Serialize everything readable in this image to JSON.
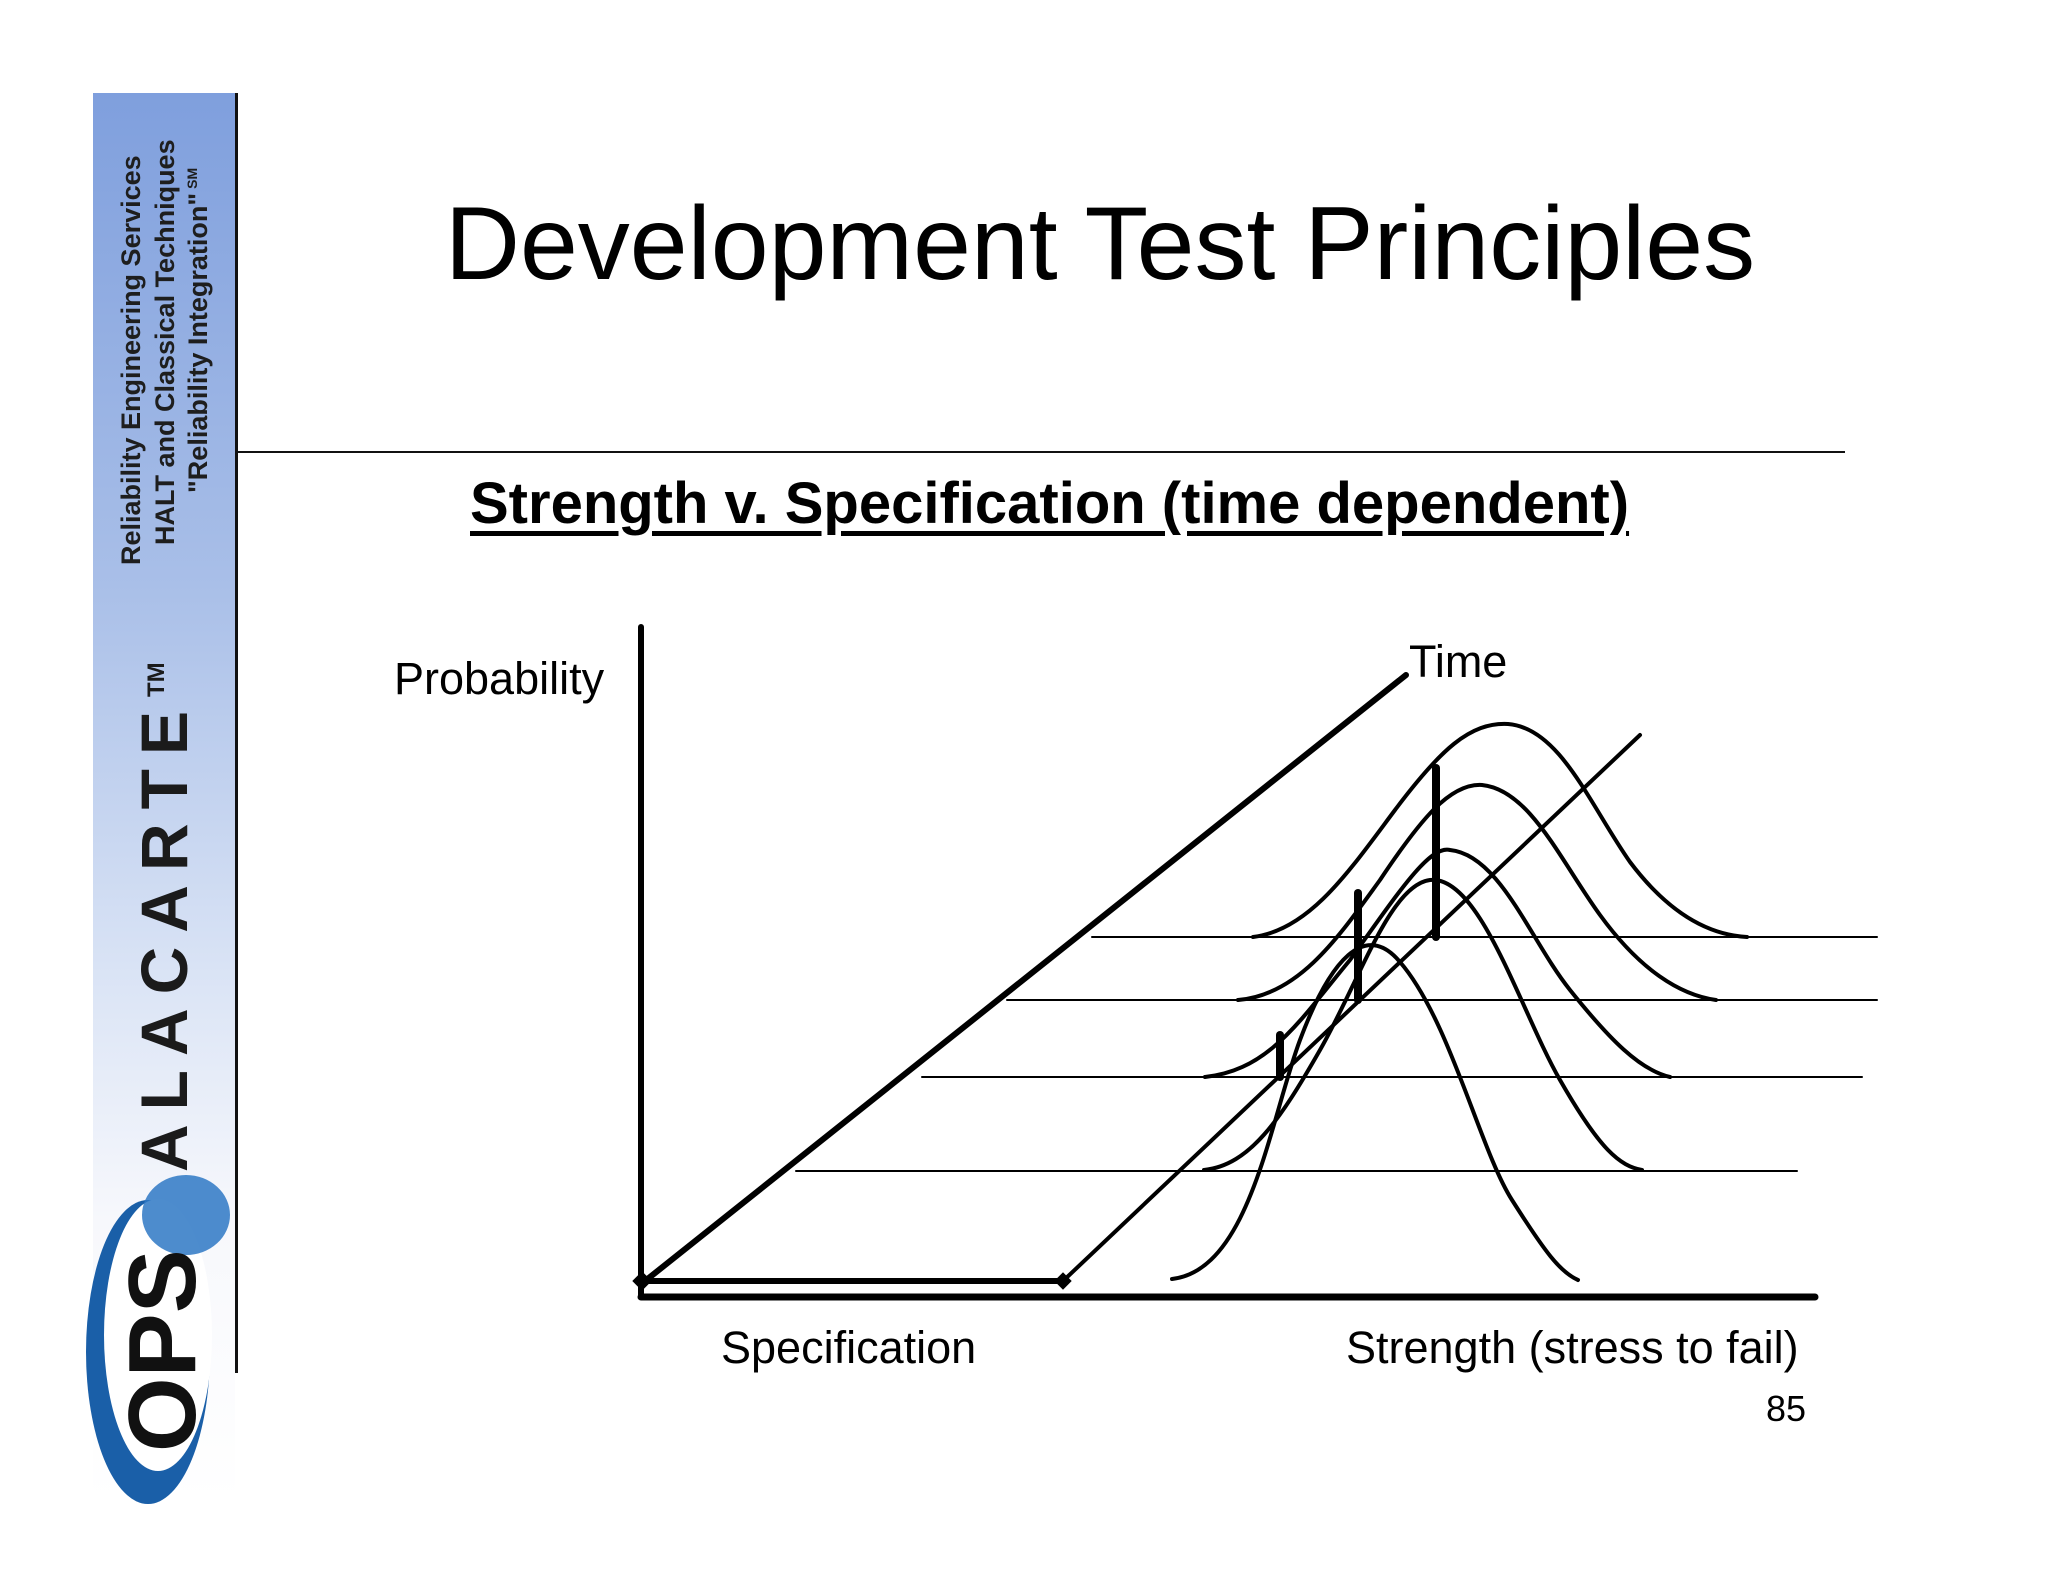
{
  "slide": {
    "title": "Development Test Principles",
    "subtitle": "Strength v. Specification (time dependent)",
    "page_number": "85"
  },
  "sidebar": {
    "tagline_line1": "Reliability Engineering Services",
    "tagline_line2": "HALT and Classical Techniques",
    "tagline_line3": "\"Reliability Integration\"",
    "tagline_mark": "SM",
    "brand_main": "ALACARTE",
    "brand_mark": "TM",
    "logo_text": "OPS",
    "colors": {
      "band_top": "#7f9fdd",
      "logo_blue": "#1a5fa8"
    }
  },
  "diagram": {
    "y_label": "Probability",
    "time_label": "Time",
    "spec_label": "Specification",
    "x_label": "Strength (stress to fail)"
  }
}
